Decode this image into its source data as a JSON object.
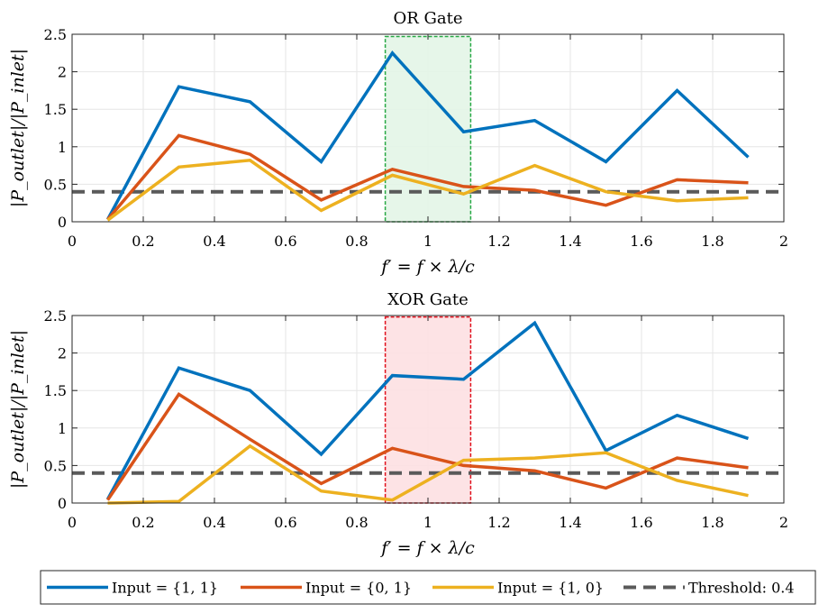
{
  "colors": {
    "series_1_1": "#0072BD",
    "series_0_1": "#D95319",
    "series_1_0": "#EDB120",
    "threshold": "#5a5a5a",
    "or_highlight_fill": "#e3f5e7",
    "or_highlight_stroke": "#27a844",
    "xor_highlight_fill": "#fde0e2",
    "xor_highlight_stroke": "#e0101c"
  },
  "legend": {
    "entries": [
      {
        "label": "Input = {1, 1}",
        "color": "#0072BD",
        "dashed": false
      },
      {
        "label": "Input = {0, 1}",
        "color": "#D95319",
        "dashed": false
      },
      {
        "label": "Input = {1, 0}",
        "color": "#EDB120",
        "dashed": false
      },
      {
        "label": "Threshold: 0.4",
        "color": "#5a5a5a",
        "dashed": true
      }
    ]
  },
  "chart_data": [
    {
      "type": "line",
      "title": "OR Gate",
      "xlabel": "f′ = f × λ/c",
      "ylabel": "|P_outlet|/|P_inlet|",
      "xlim": [
        0,
        2
      ],
      "ylim": [
        0,
        2.5
      ],
      "xticks": [
        0,
        0.2,
        0.4,
        0.6,
        0.8,
        1,
        1.2,
        1.4,
        1.6,
        1.8,
        2
      ],
      "xtick_labels": [
        "0",
        "0.2",
        "0.4",
        "0.6",
        "0.8",
        "1",
        "1.2",
        "1.4",
        "1.6",
        "1.8",
        "2"
      ],
      "yticks": [
        0,
        0.5,
        1,
        1.5,
        2,
        2.5
      ],
      "ytick_labels": [
        "0",
        "0.5",
        "1",
        "1.5",
        "2",
        "2.5"
      ],
      "grid": true,
      "x": [
        0.1,
        0.3,
        0.5,
        0.7,
        0.9,
        1.1,
        1.3,
        1.5,
        1.7,
        1.9
      ],
      "series": [
        {
          "name": "Input = {1, 1}",
          "values": [
            0.03,
            1.8,
            1.6,
            0.8,
            2.25,
            1.2,
            1.35,
            0.8,
            1.75,
            0.86
          ]
        },
        {
          "name": "Input = {0, 1}",
          "values": [
            0.03,
            1.15,
            0.9,
            0.29,
            0.7,
            0.47,
            0.42,
            0.22,
            0.56,
            0.52
          ]
        },
        {
          "name": "Input = {1, 0}",
          "values": [
            0.02,
            0.73,
            0.82,
            0.15,
            0.62,
            0.37,
            0.75,
            0.4,
            0.28,
            0.32
          ]
        }
      ],
      "threshold": 0.4,
      "highlight": {
        "x0": 0.88,
        "x1": 1.12,
        "y0": 0,
        "y1": 2.47
      }
    },
    {
      "type": "line",
      "title": "XOR Gate",
      "xlabel": "f′ = f × λ/c",
      "ylabel": "|P_outlet|/|P_inlet|",
      "xlim": [
        0,
        2
      ],
      "ylim": [
        0,
        2.5
      ],
      "xticks": [
        0,
        0.2,
        0.4,
        0.6,
        0.8,
        1,
        1.2,
        1.4,
        1.6,
        1.8,
        2
      ],
      "xtick_labels": [
        "0",
        "0.2",
        "0.4",
        "0.6",
        "0.8",
        "1",
        "1.2",
        "1.4",
        "1.6",
        "1.8",
        "2"
      ],
      "yticks": [
        0,
        0.5,
        1,
        1.5,
        2,
        2.5
      ],
      "ytick_labels": [
        "0",
        "0.5",
        "1",
        "1.5",
        "2",
        "2.5"
      ],
      "grid": true,
      "x": [
        0.1,
        0.3,
        0.5,
        0.7,
        0.9,
        1.1,
        1.3,
        1.5,
        1.7,
        1.9
      ],
      "series": [
        {
          "name": "Input = {1, 1}",
          "values": [
            0.05,
            1.8,
            1.5,
            0.65,
            1.7,
            1.65,
            2.4,
            0.7,
            1.17,
            0.86
          ]
        },
        {
          "name": "Input = {0, 1}",
          "values": [
            0.04,
            1.45,
            0.85,
            0.26,
            0.73,
            0.5,
            0.43,
            0.2,
            0.6,
            0.47
          ]
        },
        {
          "name": "Input = {1, 0}",
          "values": [
            0.0,
            0.02,
            0.76,
            0.16,
            0.04,
            0.57,
            0.6,
            0.67,
            0.3,
            0.1
          ]
        }
      ],
      "threshold": 0.4,
      "highlight": {
        "x0": 0.88,
        "x1": 1.12,
        "y0": 0,
        "y1": 2.48
      }
    }
  ]
}
